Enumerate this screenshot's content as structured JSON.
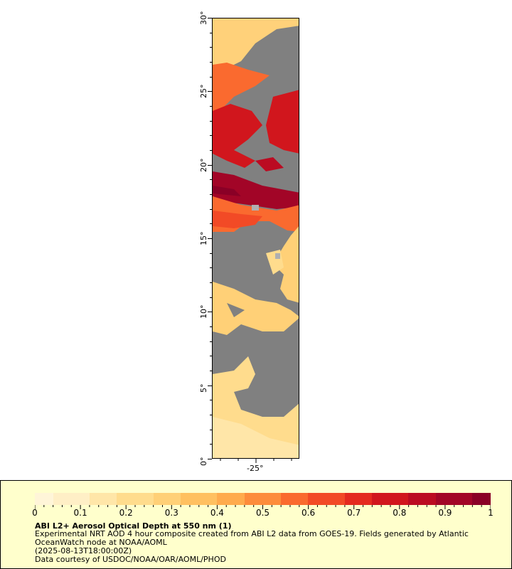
{
  "map": {
    "lat_ticks": [
      "0°",
      "5°",
      "10°",
      "15°",
      "20°",
      "25°",
      "30°"
    ],
    "lon_ticks": [
      "-25°"
    ],
    "nodata_color": "#808080"
  },
  "legend": {
    "colorbar_min": "0",
    "colorbar_max": "1",
    "tick_labels": [
      "0",
      "0.1",
      "0.2",
      "0.3",
      "0.4",
      "0.5",
      "0.6",
      "0.7",
      "0.8",
      "0.9",
      "1"
    ],
    "title": "ABI L2+ Aerosol Optical Depth at 550 nm (1)",
    "line1": "Experimental NRT AOD 4 hour composite created from ABI L2 data from GOES-19. Fields generated by Atlantic",
    "line2": "OceanWatch node at NOAA/AOML",
    "line3": "(2025-08-13T18:00:00Z)",
    "line4": "Data courtesy of USDOC/NOAA/OAR/AOML/PHOD",
    "colors": [
      "#fff5d8",
      "#ffefc6",
      "#ffe6a8",
      "#ffdc8d",
      "#ffd077",
      "#ffc060",
      "#ffab4d",
      "#fd8c3c",
      "#fa6a2f",
      "#f24a26",
      "#e42a1f",
      "#d1161d",
      "#bb0b22",
      "#a20527",
      "#8a0026"
    ]
  }
}
